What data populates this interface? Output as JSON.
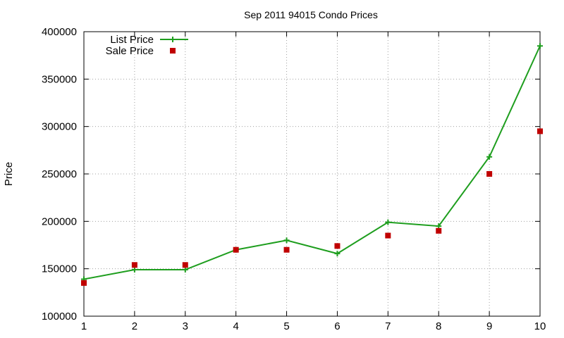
{
  "chart_data": {
    "type": "line",
    "title": "Sep 2011 94015 Condo Prices",
    "xlabel": "",
    "ylabel": "Price",
    "x": [
      1,
      2,
      3,
      4,
      5,
      6,
      7,
      8,
      9,
      10
    ],
    "xlim": [
      1,
      10
    ],
    "ylim": [
      100000,
      400000
    ],
    "xticks": [
      "1",
      "2",
      "3",
      "4",
      "5",
      "6",
      "7",
      "8",
      "9",
      "10"
    ],
    "yticks": [
      "100000",
      "150000",
      "200000",
      "250000",
      "300000",
      "350000",
      "400000"
    ],
    "grid": true,
    "legend_position": "top-left",
    "series": [
      {
        "name": "List Price",
        "style": "linespoints",
        "marker": "plus",
        "color": "#1e9e1e",
        "values": [
          139000,
          149000,
          149000,
          170000,
          180000,
          166000,
          199000,
          195000,
          268000,
          385000
        ]
      },
      {
        "name": "Sale Price",
        "style": "points",
        "marker": "square",
        "color": "#c00000",
        "values": [
          135000,
          154000,
          154000,
          170000,
          170000,
          174000,
          185000,
          190000,
          250000,
          295000
        ]
      }
    ]
  }
}
